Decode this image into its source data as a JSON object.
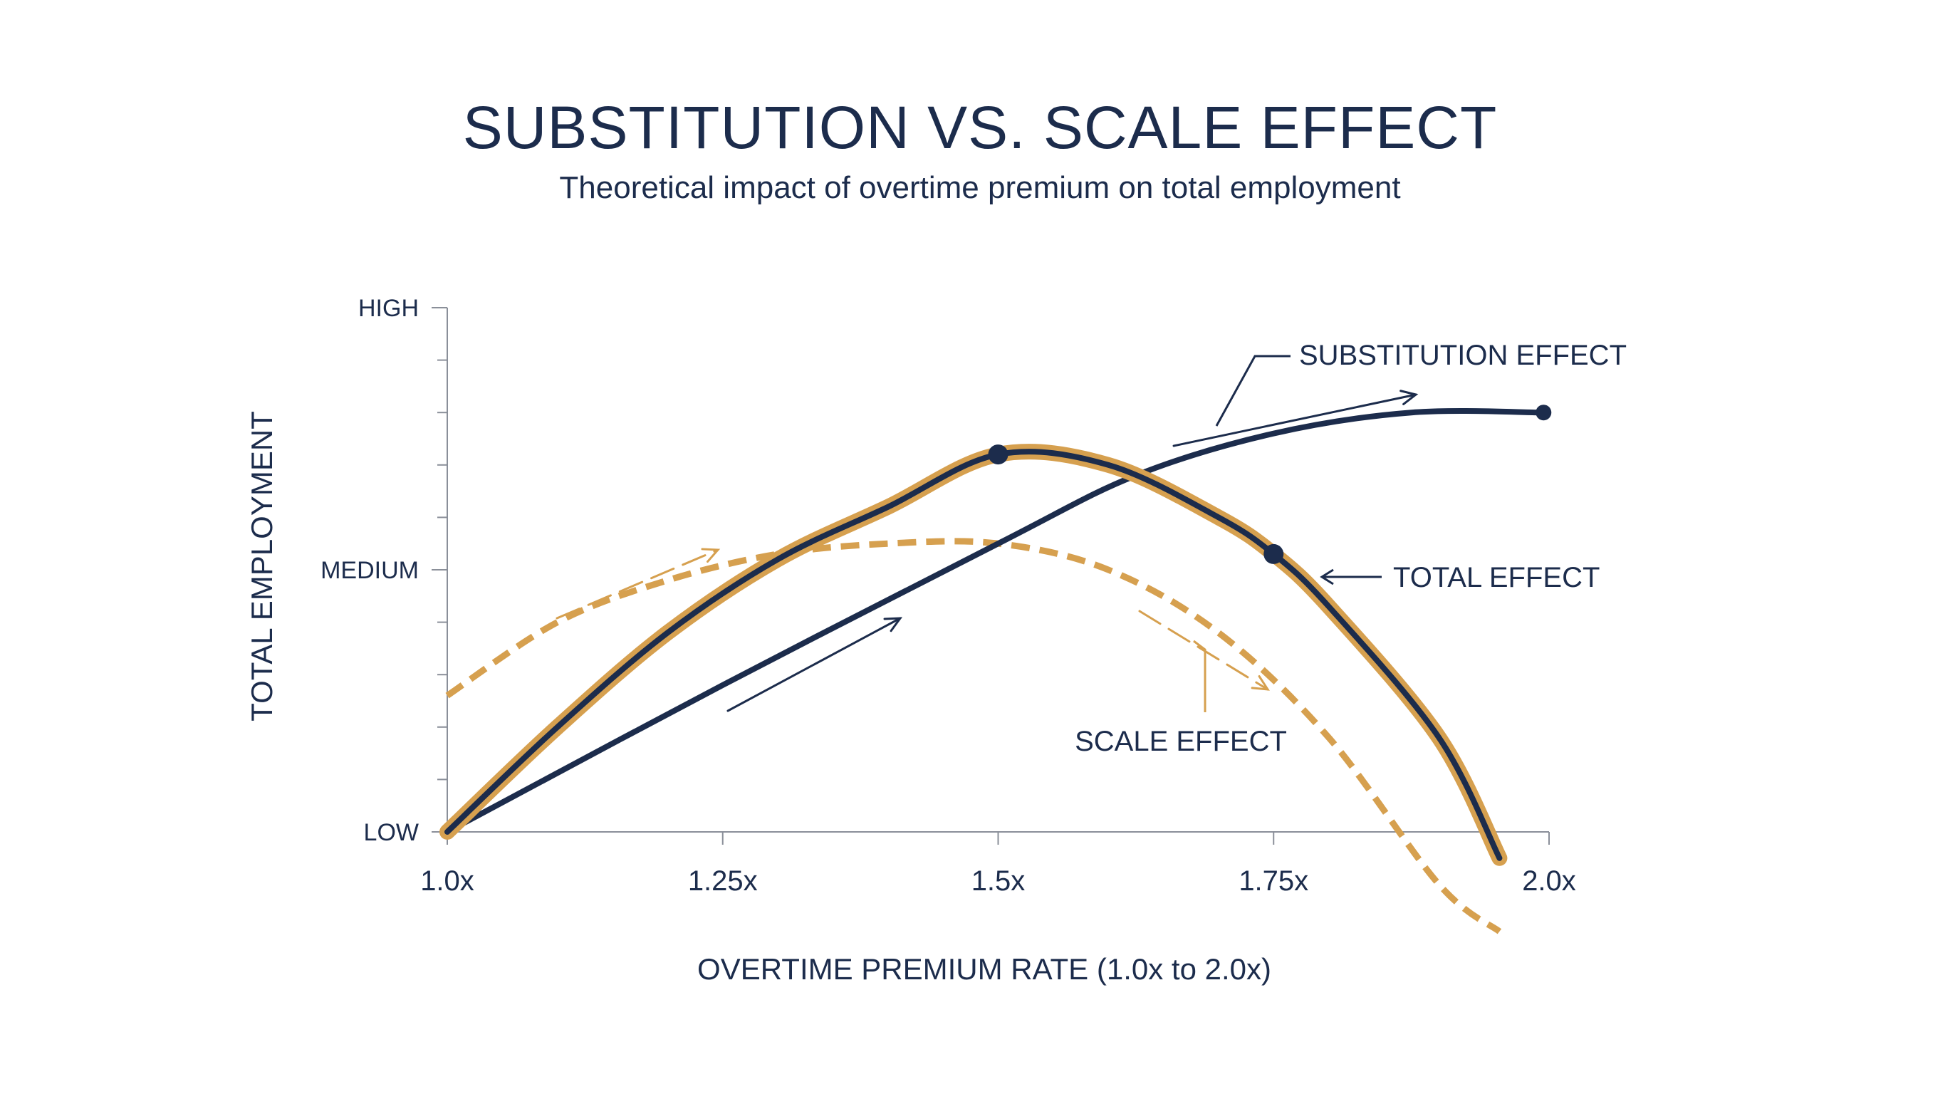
{
  "chart_data": {
    "type": "line",
    "title": "SUBSTITUTION VS. SCALE EFFECT",
    "subtitle": "Theoretical impact of overtime premium on total employment",
    "xlabel": "OVERTIME PREMIUM RATE (1.0x to 2.0x)",
    "ylabel": "TOTAL EMPLOYMENT",
    "xlim": [
      1.0,
      2.0
    ],
    "ylim": [
      0,
      1
    ],
    "x_ticks": [
      {
        "value": 1.0,
        "label": "1.0x"
      },
      {
        "value": 1.25,
        "label": "1.25x"
      },
      {
        "value": 1.5,
        "label": "1.5x"
      },
      {
        "value": 1.75,
        "label": "1.75x"
      },
      {
        "value": 2.0,
        "label": "2.0x"
      }
    ],
    "y_ticks": [
      {
        "value": 0,
        "label": "LOW"
      },
      {
        "value": 0.5,
        "label": "MEDIUM"
      },
      {
        "value": 1,
        "label": "HIGH"
      }
    ],
    "y_minor_tick_step": 0.1,
    "grid": false,
    "series": [
      {
        "id": "substitution",
        "name": "SUBSTITUTION EFFECT",
        "style": "solid",
        "color": "#1c2c4c",
        "points": [
          [
            1.0,
            0.0
          ],
          [
            1.25,
            0.28
          ],
          [
            1.5,
            0.55
          ],
          [
            1.625,
            0.68
          ],
          [
            1.75,
            0.76
          ],
          [
            1.875,
            0.8
          ],
          [
            1.995,
            0.8
          ]
        ],
        "markers": [
          [
            1.995,
            0.8
          ]
        ]
      },
      {
        "id": "scale",
        "name": "SCALE EFFECT",
        "style": "dashed",
        "color": "#d6a04f",
        "points": [
          [
            1.0,
            0.26
          ],
          [
            1.1,
            0.4
          ],
          [
            1.2,
            0.48
          ],
          [
            1.3,
            0.53
          ],
          [
            1.4,
            0.55
          ],
          [
            1.5,
            0.55
          ],
          [
            1.6,
            0.5
          ],
          [
            1.7,
            0.38
          ],
          [
            1.8,
            0.18
          ],
          [
            1.9,
            -0.1
          ],
          [
            1.955,
            -0.19
          ]
        ]
      },
      {
        "id": "total",
        "name": "TOTAL EFFECT",
        "style": "solid-highlight",
        "color": "#1c2c4c",
        "highlight_color": "#d6a04f",
        "points": [
          [
            1.0,
            0.0
          ],
          [
            1.1,
            0.2
          ],
          [
            1.2,
            0.38
          ],
          [
            1.3,
            0.52
          ],
          [
            1.4,
            0.62
          ],
          [
            1.5,
            0.72
          ],
          [
            1.6,
            0.7
          ],
          [
            1.7,
            0.6
          ],
          [
            1.75,
            0.53
          ],
          [
            1.8,
            0.43
          ],
          [
            1.9,
            0.18
          ],
          [
            1.955,
            -0.05
          ]
        ],
        "markers": [
          [
            1.5,
            0.72
          ],
          [
            1.75,
            0.53
          ]
        ]
      }
    ],
    "annotations": [
      {
        "text": "SUBSTITUTION EFFECT",
        "target": "substitution"
      },
      {
        "text": "TOTAL EFFECT",
        "target": "total"
      },
      {
        "text": "SCALE EFFECT",
        "target": "scale"
      }
    ]
  },
  "colors": {
    "navy": "#1c2c4c",
    "gold": "#d6a04f",
    "axis": "#8a8f99"
  }
}
